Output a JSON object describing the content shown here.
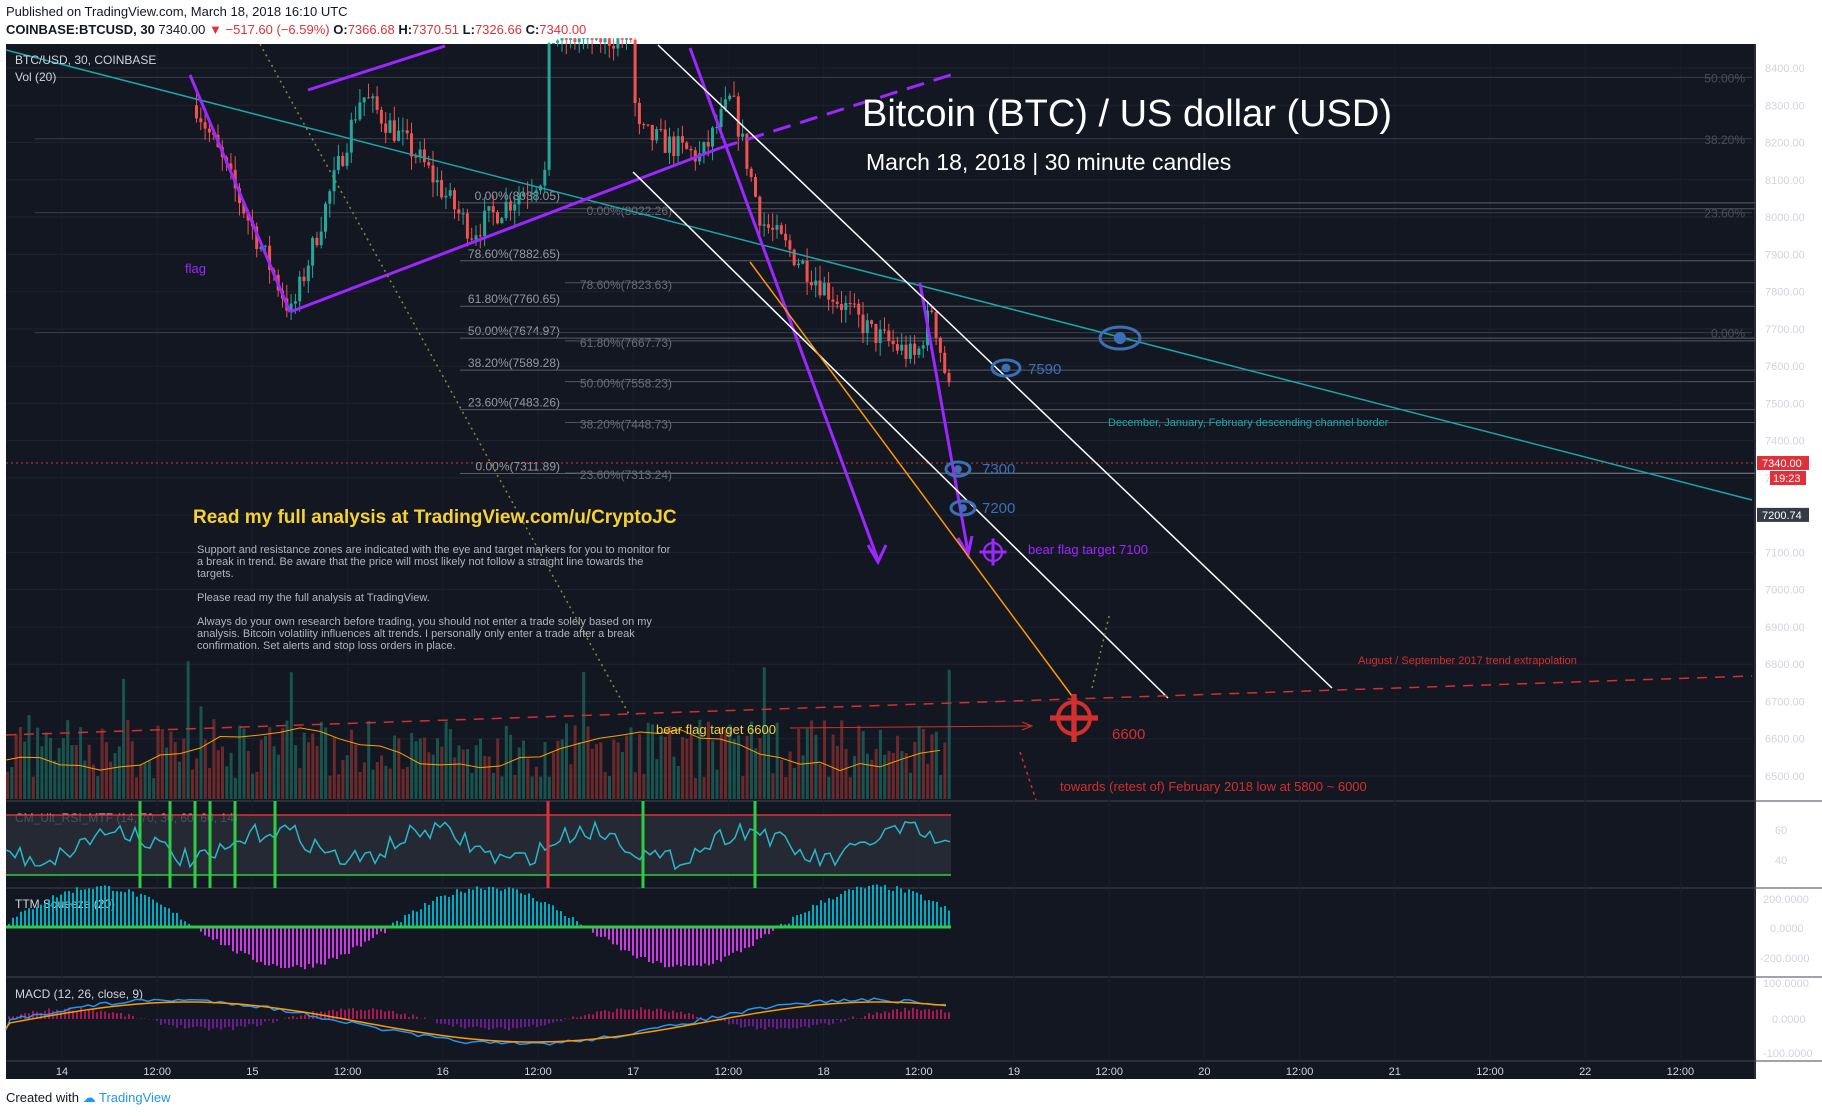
{
  "header": {
    "published": "Published on TradingView.com, March 18, 2018 16:10 UTC",
    "symbol_line": "COINBASE:BTCUSD, 30",
    "last": "7340.00",
    "change": "▼ −517.60 (−6.59%)",
    "open_label": "O:",
    "open": "7366.68",
    "high_label": "H:",
    "high": "7370.51",
    "low_label": "L:",
    "low": "7326.66",
    "close_label": "C:",
    "close": "7340.00"
  },
  "chart_data": {
    "type": "candlestick",
    "title": "Bitcoin (BTC) / US dollar (USD)",
    "subtitle": "March 18, 2018 | 30 minute candles",
    "legend": "BTC/USD, 30, COINBASE",
    "volume_label": "Vol (20)",
    "y_ticks": [
      8400,
      8300,
      8200,
      8100,
      8000,
      7900,
      7800,
      7700,
      7600,
      7500,
      7400,
      7300,
      7200,
      7100,
      7000,
      6900,
      6800,
      6700,
      6600,
      6500
    ],
    "y_tick_labels": [
      "8400.00",
      "8300.00",
      "8200.00",
      "8100.00",
      "8000.00",
      "7900.00",
      "7800.00",
      "7700.00",
      "7600.00",
      "7500.00",
      "7400.00",
      "7300.00",
      "7200.00",
      "7100.00",
      "7000.00",
      "6900.00",
      "6800.00",
      "6700.00",
      "6600.00",
      "6500.00"
    ],
    "ylim": [
      6440,
      8485
    ],
    "x_ticks": [
      "14",
      "12:00",
      "15",
      "12:00",
      "16",
      "12:00",
      "17",
      "12:00",
      "18",
      "12:00",
      "19",
      "12:00",
      "20",
      "12:00",
      "21",
      "12:00",
      "22",
      "12:00"
    ],
    "price_marks": {
      "last": "7340.00",
      "countdown": "19:23",
      "level": "7200.74"
    },
    "fib_set_1": [
      {
        "label": "0.00%(8038.05)",
        "price": 8038.05
      },
      {
        "label": "78.60%(7882.65)",
        "price": 7882.65
      },
      {
        "label": "61.80%(7760.65)",
        "price": 7760.65
      },
      {
        "label": "50.00%(7674.97)",
        "price": 7674.97
      },
      {
        "label": "38.20%(7589.28)",
        "price": 7589.28
      },
      {
        "label": "23.60%(7483.26)",
        "price": 7483.26
      },
      {
        "label": "0.00%(7311.89)",
        "price": 7311.89
      }
    ],
    "fib_set_2": [
      {
        "label": "0.00%(8022.26)",
        "price": 8022.26
      },
      {
        "label": "78.60%(7823.63)",
        "price": 7823.63
      },
      {
        "label": "61.80%(7667.73)",
        "price": 7667.73
      },
      {
        "label": "50.00%(7558.23)",
        "price": 7558.23
      },
      {
        "label": "38.20%(7448.73)",
        "price": 7448.73
      },
      {
        "label": "23.60%(7313.24)",
        "price": 7313.24
      }
    ],
    "fib_set_3": [
      {
        "label": "50.00%",
        "price": 8375
      },
      {
        "label": "38.20%",
        "price": 8210
      },
      {
        "label": "23.60%",
        "price": 8012
      },
      {
        "label": "0.00%",
        "price": 7690
      }
    ],
    "annotations": {
      "flag": "flag",
      "eye_7590": "7590",
      "eye_7300": "7300",
      "eye_7200": "7200",
      "bear_flag_7100": "bear flag target 7100",
      "channel_border": "December, January, February descending channel border",
      "aug_sep": "August / September 2017 trend extrapolation",
      "bear_flag_6600": "bear flag target 6600",
      "target_6600": "6600",
      "towards": "towards (retest of) February 2018 low at 5800 ~ 6000",
      "read_analysis": "Read my full analysis at TradingView.com/u/CryptoJC",
      "note_1": "Support and resistance zones are indicated with the eye and target markers for you to monitor for",
      "note_2": "a break in trend. Be aware that the price will most likely not follow a straight line towards the",
      "note_3": "targets.",
      "note_4": "Please read my the full analysis at TradingView.",
      "note_5": "Always do your own research before trading, you should not enter a trade solely based on my",
      "note_6": "analysis. Bitcoin volatility influences alt trends. I personally only enter a trade after a break",
      "note_7": "confirmation. Set alerts and stop loss orders in place."
    },
    "indicators": [
      {
        "name": "CM_Ult_RSI_MTF (14, 70, 30, 60, 60, 14)",
        "ticks": [
          "60",
          "40"
        ]
      },
      {
        "name": "TTM Squeeze (20)",
        "ticks": [
          "200.0000",
          "0.0000",
          "-200.0000"
        ]
      },
      {
        "name": "MACD (12, 26, close, 9)",
        "ticks": [
          "100.0000",
          "0.0000",
          "-100.0000"
        ]
      }
    ]
  },
  "footer": {
    "created": "Created with",
    "brand": "TradingView"
  },
  "colors": {
    "bg": "#131722",
    "up": "#26a69a",
    "down": "#ef5350",
    "purple": "#9c27ff",
    "teal": "#1ba6a6",
    "orange": "#ff9800",
    "red": "#d32f2f",
    "yellow": "#f5d133",
    "eye": "#3d6fb6"
  }
}
